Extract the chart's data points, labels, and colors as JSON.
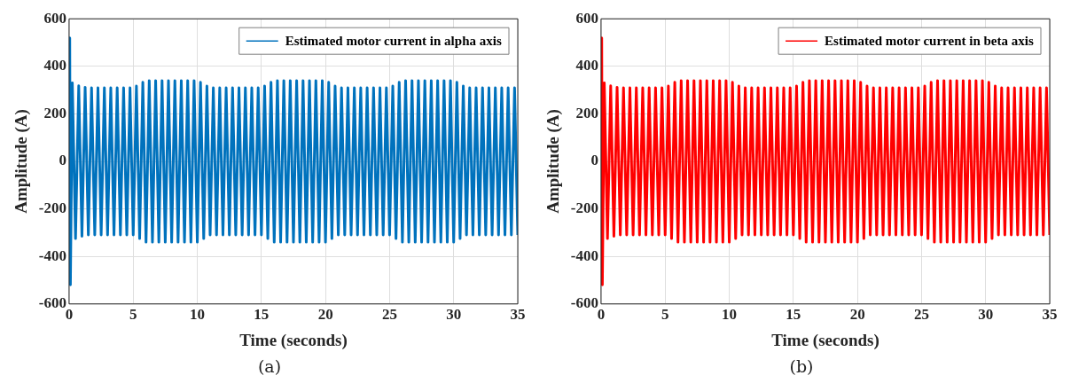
{
  "chart_data": [
    {
      "type": "line",
      "xlabel": "Time (seconds)",
      "ylabel": "Amplitude (A)",
      "annotations": [
        "(a)"
      ],
      "xlim": [
        0,
        35
      ],
      "xticks": [
        0,
        5,
        10,
        15,
        20,
        25,
        30,
        35
      ],
      "ylim": [
        -600,
        600
      ],
      "yticks": [
        -600,
        -400,
        -200,
        0,
        200,
        400,
        600
      ],
      "grid": true,
      "legend": "top right",
      "series": [
        {
          "name": "Estimated motor current in alpha axis",
          "color": "#0072bd",
          "x": [
            0,
            0.05,
            0.1,
            0.25,
            0.5,
            0.75,
            1,
            1.25,
            1.5,
            1.75,
            2,
            2.25,
            2.5,
            2.75,
            3,
            3.25,
            3.5,
            3.75,
            4,
            4.25,
            4.5,
            4.75,
            5,
            5.25,
            5.5,
            5.75,
            6,
            6.25,
            6.5,
            6.75,
            7,
            7.25,
            7.5,
            7.75,
            8,
            8.25,
            8.5,
            8.75,
            9,
            9.25,
            9.5,
            9.75,
            10,
            10.25,
            10.5,
            10.75,
            11,
            11.25,
            11.5,
            11.75,
            12,
            12.25,
            12.5,
            12.75,
            13,
            13.25,
            13.5,
            13.75,
            14,
            14.25,
            14.5,
            14.75,
            15,
            15.25,
            15.5,
            15.75,
            16,
            16.25,
            16.5,
            16.75,
            17,
            17.25,
            17.5,
            17.75,
            18,
            18.25,
            18.5,
            18.75,
            19,
            19.25,
            19.5,
            19.75,
            20,
            20.25,
            20.5,
            20.75,
            21,
            21.25,
            21.5,
            21.75,
            22,
            22.25,
            22.5,
            22.75,
            23,
            23.25,
            23.5,
            23.75,
            24,
            24.25,
            24.5,
            24.75,
            25,
            25.25,
            25.5,
            25.75,
            26,
            26.25,
            26.5,
            26.75,
            27,
            27.25,
            27.5,
            27.75,
            28,
            28.25,
            28.5,
            28.75,
            29,
            29.25,
            29.5,
            29.75,
            30,
            30.25,
            30.5,
            30.75,
            31,
            31.25,
            31.5,
            31.75,
            32,
            32.25,
            32.5,
            32.75,
            33,
            33.25,
            33.5,
            33.75,
            34,
            34.25,
            34.5,
            34.75,
            35
          ],
          "values": [
            0,
            520,
            -520,
            330,
            -325,
            318,
            -315,
            312,
            -310,
            310,
            -310,
            310,
            -310,
            310,
            -310,
            310,
            -310,
            310,
            -310,
            310,
            -310,
            310,
            -310,
            317,
            -325,
            333,
            -340,
            340,
            -340,
            340,
            -340,
            340,
            -340,
            340,
            -340,
            340,
            -340,
            340,
            -340,
            340,
            -340,
            340,
            -340,
            333,
            -325,
            317,
            -310,
            310,
            -310,
            310,
            -310,
            310,
            -310,
            310,
            -310,
            310,
            -310,
            310,
            -310,
            310,
            -310,
            310,
            -310,
            317,
            -325,
            333,
            -340,
            340,
            -340,
            340,
            -340,
            340,
            -340,
            340,
            -340,
            340,
            -340,
            340,
            -340,
            340,
            -340,
            340,
            -340,
            333,
            -325,
            317,
            -310,
            310,
            -310,
            310,
            -310,
            310,
            -310,
            310,
            -310,
            310,
            -310,
            310,
            -310,
            310,
            -310,
            310,
            -310,
            317,
            -325,
            333,
            -340,
            340,
            -340,
            340,
            -340,
            340,
            -340,
            340,
            -340,
            340,
            -340,
            340,
            -340,
            340,
            -340,
            340,
            -340,
            333,
            -325,
            317,
            -310,
            310,
            -310,
            310,
            -310,
            310,
            -310,
            310,
            -310,
            310,
            -310,
            310,
            -310,
            310,
            -310,
            310,
            -310
          ]
        }
      ]
    },
    {
      "type": "line",
      "xlabel": "Time (seconds)",
      "ylabel": "Amplitude (A)",
      "annotations": [
        "(b)"
      ],
      "xlim": [
        0,
        35
      ],
      "xticks": [
        0,
        5,
        10,
        15,
        20,
        25,
        30,
        35
      ],
      "ylim": [
        -600,
        600
      ],
      "yticks": [
        -600,
        -400,
        -200,
        0,
        200,
        400,
        600
      ],
      "grid": true,
      "legend": "top right",
      "series": [
        {
          "name": "Estimated motor current in beta axis",
          "color": "#ff0000",
          "x": [
            0,
            0.05,
            0.1,
            0.25,
            0.5,
            0.75,
            1,
            1.25,
            1.5,
            1.75,
            2,
            2.25,
            2.5,
            2.75,
            3,
            3.25,
            3.5,
            3.75,
            4,
            4.25,
            4.5,
            4.75,
            5,
            5.25,
            5.5,
            5.75,
            6,
            6.25,
            6.5,
            6.75,
            7,
            7.25,
            7.5,
            7.75,
            8,
            8.25,
            8.5,
            8.75,
            9,
            9.25,
            9.5,
            9.75,
            10,
            10.25,
            10.5,
            10.75,
            11,
            11.25,
            11.5,
            11.75,
            12,
            12.25,
            12.5,
            12.75,
            13,
            13.25,
            13.5,
            13.75,
            14,
            14.25,
            14.5,
            14.75,
            15,
            15.25,
            15.5,
            15.75,
            16,
            16.25,
            16.5,
            16.75,
            17,
            17.25,
            17.5,
            17.75,
            18,
            18.25,
            18.5,
            18.75,
            19,
            19.25,
            19.5,
            19.75,
            20,
            20.25,
            20.5,
            20.75,
            21,
            21.25,
            21.5,
            21.75,
            22,
            22.25,
            22.5,
            22.75,
            23,
            23.25,
            23.5,
            23.75,
            24,
            24.25,
            24.5,
            24.75,
            25,
            25.25,
            25.5,
            25.75,
            26,
            26.25,
            26.5,
            26.75,
            27,
            27.25,
            27.5,
            27.75,
            28,
            28.25,
            28.5,
            28.75,
            29,
            29.25,
            29.5,
            29.75,
            30,
            30.25,
            30.5,
            30.75,
            31,
            31.25,
            31.5,
            31.75,
            32,
            32.25,
            32.5,
            32.75,
            33,
            33.25,
            33.5,
            33.75,
            34,
            34.25,
            34.5,
            34.75,
            35
          ],
          "values": [
            0,
            520,
            -520,
            330,
            -325,
            318,
            -315,
            312,
            -310,
            310,
            -310,
            310,
            -310,
            310,
            -310,
            310,
            -310,
            310,
            -310,
            310,
            -310,
            310,
            -310,
            317,
            -325,
            333,
            -340,
            340,
            -340,
            340,
            -340,
            340,
            -340,
            340,
            -340,
            340,
            -340,
            340,
            -340,
            340,
            -340,
            340,
            -340,
            333,
            -325,
            317,
            -310,
            310,
            -310,
            310,
            -310,
            310,
            -310,
            310,
            -310,
            310,
            -310,
            310,
            -310,
            310,
            -310,
            310,
            -310,
            317,
            -325,
            333,
            -340,
            340,
            -340,
            340,
            -340,
            340,
            -340,
            340,
            -340,
            340,
            -340,
            340,
            -340,
            340,
            -340,
            340,
            -340,
            333,
            -325,
            317,
            -310,
            310,
            -310,
            310,
            -310,
            310,
            -310,
            310,
            -310,
            310,
            -310,
            310,
            -310,
            310,
            -310,
            310,
            -310,
            317,
            -325,
            333,
            -340,
            340,
            -340,
            340,
            -340,
            340,
            -340,
            340,
            -340,
            340,
            -340,
            340,
            -340,
            340,
            -340,
            340,
            -340,
            333,
            -325,
            317,
            -310,
            310,
            -310,
            310,
            -310,
            310,
            -310,
            310,
            -310,
            310,
            -310,
            310,
            -310,
            310,
            -310,
            310,
            -310
          ]
        }
      ]
    }
  ]
}
